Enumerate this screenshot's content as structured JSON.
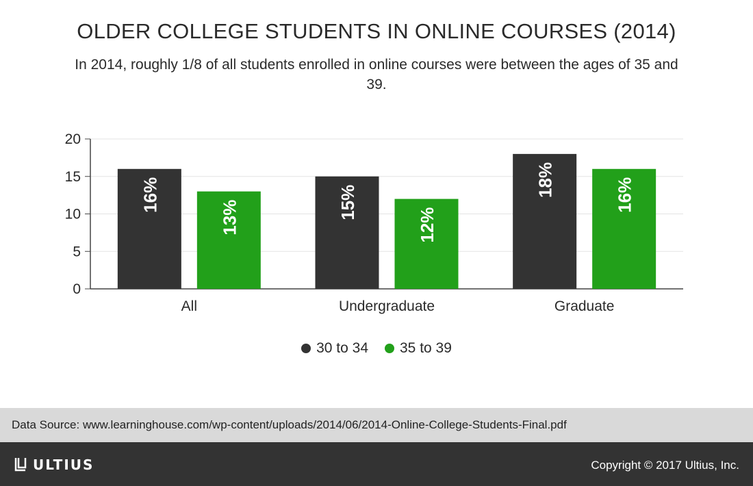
{
  "title": "OLDER COLLEGE STUDENTS IN ONLINE COURSES (2014)",
  "subtitle": "In 2014, roughly 1/8 of all students enrolled in online courses were between the ages of 35 and 39.",
  "chart_data": {
    "type": "bar",
    "categories": [
      "All",
      "Undergraduate",
      "Graduate"
    ],
    "series": [
      {
        "name": "30 to 34",
        "values": [
          16,
          15,
          18
        ],
        "labels": [
          "16%",
          "15%",
          "18%"
        ],
        "color": "#333333"
      },
      {
        "name": "35 to 39",
        "values": [
          13,
          12,
          16
        ],
        "labels": [
          "13%",
          "12%",
          "16%"
        ],
        "color": "#22a01a"
      }
    ],
    "ylim": [
      0,
      20
    ],
    "yticks": [
      "0",
      "5",
      "10",
      "15",
      "20"
    ],
    "grid": true,
    "legend": "bottom-center"
  },
  "source": "Data Source: www.learninghouse.com/wp-content/uploads/2014/06/2014-Online-College-Students-Final.pdf",
  "brand": "ULTIUS",
  "copyright": "Copyright © 2017 Ultius, Inc.",
  "colors": {
    "footer": "#333333",
    "source_bar": "#d9d9d9",
    "green": "#22a01a",
    "dark": "#333333"
  }
}
